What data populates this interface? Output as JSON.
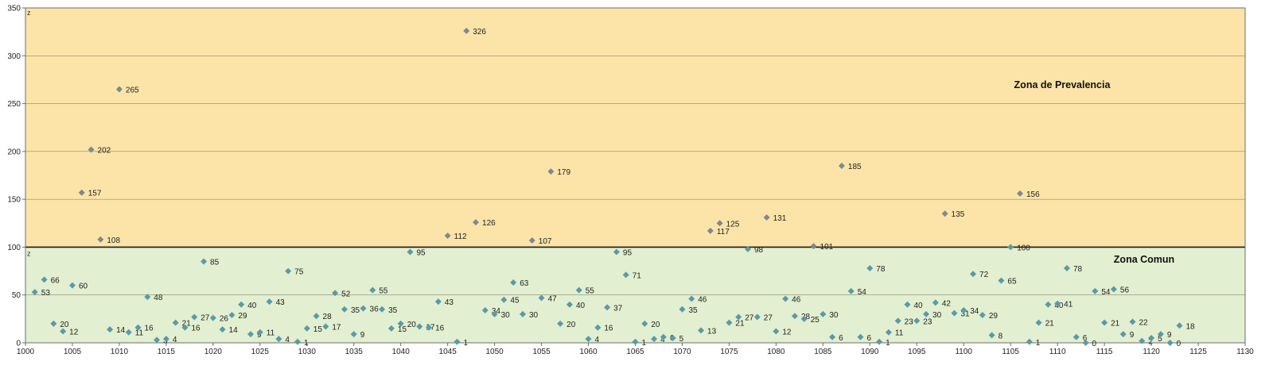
{
  "chart_data": {
    "type": "scatter",
    "xlim": [
      1000,
      1130
    ],
    "ylim": [
      0,
      350
    ],
    "x_ticks": [
      1000,
      1005,
      1010,
      1015,
      1020,
      1025,
      1030,
      1035,
      1040,
      1045,
      1050,
      1055,
      1060,
      1065,
      1070,
      1075,
      1080,
      1085,
      1090,
      1095,
      1100,
      1105,
      1110,
      1115,
      1120,
      1125,
      1130
    ],
    "y_ticks": [
      0,
      50,
      100,
      150,
      200,
      250,
      300,
      350
    ],
    "grid": "horizontal",
    "threshold": 100,
    "zones": {
      "upper": {
        "label": "Zona de Prevalencia",
        "color": "#fce4a8",
        "corner_label": "z"
      },
      "lower": {
        "label": "Zona Comun",
        "color": "#e2efd0",
        "corner_label": "z"
      }
    },
    "marker_colors": {
      "upper": "#7b8a92",
      "lower": "#5a9aa8"
    },
    "points": [
      {
        "x": 1001,
        "y": 53
      },
      {
        "x": 1002,
        "y": 66
      },
      {
        "x": 1003,
        "y": 20
      },
      {
        "x": 1004,
        "y": 12
      },
      {
        "x": 1005,
        "y": 60
      },
      {
        "x": 1006,
        "y": 157
      },
      {
        "x": 1007,
        "y": 202
      },
      {
        "x": 1008,
        "y": 108
      },
      {
        "x": 1009,
        "y": 14
      },
      {
        "x": 1010,
        "y": 265
      },
      {
        "x": 1011,
        "y": 11
      },
      {
        "x": 1012,
        "y": 16
      },
      {
        "x": 1013,
        "y": 48
      },
      {
        "x": 1014,
        "y": 3
      },
      {
        "x": 1015,
        "y": 4
      },
      {
        "x": 1016,
        "y": 21
      },
      {
        "x": 1017,
        "y": 16
      },
      {
        "x": 1018,
        "y": 27
      },
      {
        "x": 1019,
        "y": 85
      },
      {
        "x": 1020,
        "y": 26
      },
      {
        "x": 1021,
        "y": 14
      },
      {
        "x": 1022,
        "y": 29
      },
      {
        "x": 1023,
        "y": 40
      },
      {
        "x": 1024,
        "y": 9
      },
      {
        "x": 1025,
        "y": 11
      },
      {
        "x": 1026,
        "y": 43
      },
      {
        "x": 1027,
        "y": 4
      },
      {
        "x": 1028,
        "y": 75
      },
      {
        "x": 1029,
        "y": 1
      },
      {
        "x": 1030,
        "y": 15
      },
      {
        "x": 1031,
        "y": 28
      },
      {
        "x": 1032,
        "y": 17
      },
      {
        "x": 1033,
        "y": 52
      },
      {
        "x": 1034,
        "y": 35
      },
      {
        "x": 1035,
        "y": 9
      },
      {
        "x": 1036,
        "y": 36
      },
      {
        "x": 1037,
        "y": 55
      },
      {
        "x": 1038,
        "y": 35
      },
      {
        "x": 1039,
        "y": 15
      },
      {
        "x": 1040,
        "y": 20
      },
      {
        "x": 1041,
        "y": 95
      },
      {
        "x": 1042,
        "y": 17
      },
      {
        "x": 1043,
        "y": 16
      },
      {
        "x": 1044,
        "y": 43
      },
      {
        "x": 1045,
        "y": 112
      },
      {
        "x": 1046,
        "y": 1
      },
      {
        "x": 1047,
        "y": 326
      },
      {
        "x": 1048,
        "y": 126
      },
      {
        "x": 1049,
        "y": 34
      },
      {
        "x": 1050,
        "y": 30
      },
      {
        "x": 1051,
        "y": 45
      },
      {
        "x": 1052,
        "y": 63
      },
      {
        "x": 1053,
        "y": 30
      },
      {
        "x": 1054,
        "y": 107
      },
      {
        "x": 1055,
        "y": 47
      },
      {
        "x": 1056,
        "y": 179
      },
      {
        "x": 1057,
        "y": 20
      },
      {
        "x": 1058,
        "y": 40
      },
      {
        "x": 1059,
        "y": 55
      },
      {
        "x": 1060,
        "y": 4
      },
      {
        "x": 1061,
        "y": 16
      },
      {
        "x": 1062,
        "y": 37
      },
      {
        "x": 1063,
        "y": 95
      },
      {
        "x": 1064,
        "y": 71
      },
      {
        "x": 1065,
        "y": 1
      },
      {
        "x": 1066,
        "y": 20
      },
      {
        "x": 1067,
        "y": 4
      },
      {
        "x": 1068,
        "y": 6
      },
      {
        "x": 1069,
        "y": 5
      },
      {
        "x": 1070,
        "y": 35
      },
      {
        "x": 1071,
        "y": 46
      },
      {
        "x": 1072,
        "y": 13
      },
      {
        "x": 1073,
        "y": 117
      },
      {
        "x": 1074,
        "y": 125
      },
      {
        "x": 1075,
        "y": 21
      },
      {
        "x": 1076,
        "y": 27
      },
      {
        "x": 1077,
        "y": 98
      },
      {
        "x": 1078,
        "y": 27
      },
      {
        "x": 1079,
        "y": 131
      },
      {
        "x": 1080,
        "y": 12
      },
      {
        "x": 1081,
        "y": 46
      },
      {
        "x": 1082,
        "y": 28
      },
      {
        "x": 1083,
        "y": 25
      },
      {
        "x": 1084,
        "y": 101
      },
      {
        "x": 1085,
        "y": 30
      },
      {
        "x": 1086,
        "y": 6
      },
      {
        "x": 1087,
        "y": 185
      },
      {
        "x": 1088,
        "y": 54
      },
      {
        "x": 1089,
        "y": 6
      },
      {
        "x": 1090,
        "y": 78
      },
      {
        "x": 1091,
        "y": 1
      },
      {
        "x": 1092,
        "y": 11
      },
      {
        "x": 1093,
        "y": 23
      },
      {
        "x": 1094,
        "y": 40
      },
      {
        "x": 1095,
        "y": 23
      },
      {
        "x": 1096,
        "y": 30
      },
      {
        "x": 1097,
        "y": 42
      },
      {
        "x": 1098,
        "y": 135
      },
      {
        "x": 1099,
        "y": 31
      },
      {
        "x": 1100,
        "y": 34
      },
      {
        "x": 1101,
        "y": 72
      },
      {
        "x": 1102,
        "y": 29
      },
      {
        "x": 1103,
        "y": 8
      },
      {
        "x": 1104,
        "y": 65
      },
      {
        "x": 1105,
        "y": 100
      },
      {
        "x": 1106,
        "y": 156
      },
      {
        "x": 1107,
        "y": 1
      },
      {
        "x": 1108,
        "y": 21
      },
      {
        "x": 1109,
        "y": 40
      },
      {
        "x": 1110,
        "y": 41
      },
      {
        "x": 1111,
        "y": 78
      },
      {
        "x": 1112,
        "y": 6
      },
      {
        "x": 1113,
        "y": 0
      },
      {
        "x": 1114,
        "y": 54
      },
      {
        "x": 1115,
        "y": 21
      },
      {
        "x": 1116,
        "y": 56
      },
      {
        "x": 1117,
        "y": 9
      },
      {
        "x": 1118,
        "y": 22
      },
      {
        "x": 1119,
        "y": 2
      },
      {
        "x": 1120,
        "y": 5
      },
      {
        "x": 1121,
        "y": 9
      },
      {
        "x": 1122,
        "y": 0
      },
      {
        "x": 1123,
        "y": 18
      }
    ]
  }
}
